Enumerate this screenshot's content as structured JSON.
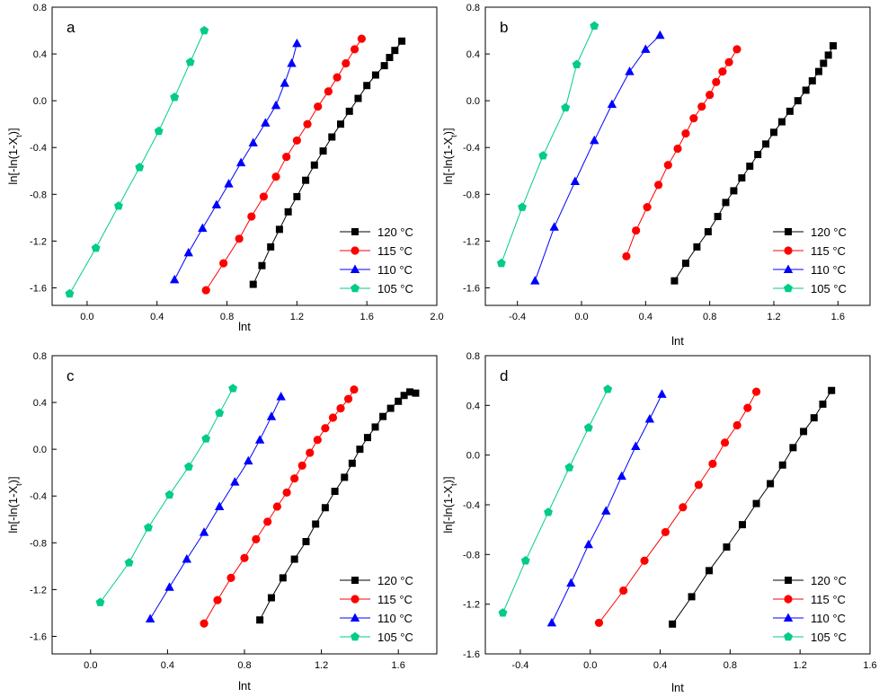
{
  "chart_data": [
    {
      "type": "line",
      "panel_label": "a",
      "xlabel": "lnt",
      "ylabel": "ln[-ln(1-X",
      "ylabel_sub": "t",
      "ylabel_end": ")]",
      "xlim": [
        -0.2,
        2.0
      ],
      "ylim": [
        -1.75,
        0.8
      ],
      "xticks": [
        0.0,
        0.4,
        0.8,
        1.2,
        1.6,
        2.0
      ],
      "xtick_labels": [
        "0.0",
        "0.4",
        "0.8",
        "1.2",
        "1.6",
        "2.0"
      ],
      "yticks": [
        -1.6,
        -1.2,
        -0.8,
        -0.4,
        0.0,
        0.4,
        0.8
      ],
      "ytick_labels": [
        "-1.6",
        "-1.2",
        "-0.8",
        "-0.4",
        "0.0",
        "0.4",
        "0.8"
      ],
      "legend_position": "lower-right",
      "series": [
        {
          "name": "120 °C",
          "color": "#000000",
          "marker": "square",
          "x": [
            0.95,
            1.0,
            1.05,
            1.1,
            1.15,
            1.2,
            1.25,
            1.3,
            1.35,
            1.4,
            1.45,
            1.5,
            1.55,
            1.6,
            1.65,
            1.7,
            1.73,
            1.76,
            1.8
          ],
          "y": [
            -1.57,
            -1.41,
            -1.25,
            -1.1,
            -0.95,
            -0.82,
            -0.68,
            -0.55,
            -0.43,
            -0.31,
            -0.2,
            -0.09,
            0.02,
            0.13,
            0.22,
            0.3,
            0.37,
            0.43,
            0.51
          ]
        },
        {
          "name": "115 °C",
          "color": "#ff0000",
          "marker": "circle",
          "x": [
            0.68,
            0.78,
            0.87,
            0.94,
            1.01,
            1.08,
            1.14,
            1.2,
            1.26,
            1.32,
            1.38,
            1.43,
            1.48,
            1.53,
            1.57
          ],
          "y": [
            -1.62,
            -1.39,
            -1.18,
            -0.99,
            -0.82,
            -0.65,
            -0.48,
            -0.34,
            -0.2,
            -0.05,
            0.08,
            0.2,
            0.32,
            0.44,
            0.53
          ]
        },
        {
          "name": "110 °C",
          "color": "#0000ff",
          "marker": "triangle",
          "x": [
            0.5,
            0.58,
            0.66,
            0.74,
            0.81,
            0.88,
            0.95,
            1.02,
            1.08,
            1.13,
            1.17,
            1.2
          ],
          "y": [
            -1.53,
            -1.3,
            -1.09,
            -0.89,
            -0.71,
            -0.53,
            -0.36,
            -0.19,
            -0.04,
            0.15,
            0.32,
            0.49
          ]
        },
        {
          "name": "105 °C",
          "color": "#00cc88",
          "marker": "pentagon",
          "x": [
            -0.1,
            0.05,
            0.18,
            0.3,
            0.41,
            0.5,
            0.59,
            0.67
          ],
          "y": [
            -1.65,
            -1.26,
            -0.9,
            -0.57,
            -0.26,
            0.03,
            0.33,
            0.6
          ]
        }
      ]
    },
    {
      "type": "line",
      "panel_label": "b",
      "xlabel": "lnt",
      "ylabel": "ln[-ln(1-X",
      "ylabel_sub": "t",
      "ylabel_end": ")]",
      "xlim": [
        -0.6,
        1.8
      ],
      "ylim": [
        -1.75,
        0.8
      ],
      "xticks": [
        -0.4,
        0.0,
        0.4,
        0.8,
        1.2,
        1.6
      ],
      "xtick_labels": [
        "-0.4",
        "0.0",
        "0.4",
        "0.8",
        "1.2",
        "1.6"
      ],
      "yticks": [
        -1.6,
        -1.2,
        -0.8,
        -0.4,
        0.0,
        0.4,
        0.8
      ],
      "ytick_labels": [
        "-1.6",
        "-1.2",
        "-0.8",
        "-0.4",
        "0.0",
        "0.4",
        "0.8"
      ],
      "legend_position": "lower-right",
      "series": [
        {
          "name": "120 °C",
          "color": "#000000",
          "marker": "square",
          "x": [
            0.58,
            0.65,
            0.72,
            0.79,
            0.85,
            0.9,
            0.95,
            1.0,
            1.05,
            1.1,
            1.15,
            1.2,
            1.25,
            1.3,
            1.35,
            1.4,
            1.44,
            1.48,
            1.51,
            1.54,
            1.57
          ],
          "y": [
            -1.54,
            -1.39,
            -1.25,
            -1.12,
            -0.99,
            -0.87,
            -0.77,
            -0.66,
            -0.56,
            -0.46,
            -0.37,
            -0.27,
            -0.18,
            -0.09,
            0.0,
            0.09,
            0.17,
            0.25,
            0.32,
            0.39,
            0.47
          ]
        },
        {
          "name": "115 °C",
          "color": "#ff0000",
          "marker": "circle",
          "x": [
            0.28,
            0.34,
            0.41,
            0.48,
            0.54,
            0.6,
            0.65,
            0.7,
            0.75,
            0.8,
            0.84,
            0.88,
            0.92,
            0.97
          ],
          "y": [
            -1.33,
            -1.11,
            -0.91,
            -0.72,
            -0.55,
            -0.41,
            -0.28,
            -0.15,
            -0.05,
            0.05,
            0.16,
            0.25,
            0.33,
            0.44
          ]
        },
        {
          "name": "110 °C",
          "color": "#0000ff",
          "marker": "triangle",
          "x": [
            -0.29,
            -0.17,
            -0.04,
            0.08,
            0.19,
            0.3,
            0.4,
            0.49
          ],
          "y": [
            -1.54,
            -1.08,
            -0.69,
            -0.34,
            -0.03,
            0.25,
            0.44,
            0.56
          ]
        },
        {
          "name": "105 °C",
          "color": "#00cc88",
          "marker": "pentagon",
          "x": [
            -0.5,
            -0.37,
            -0.24,
            -0.1,
            -0.03,
            0.08
          ],
          "y": [
            -1.39,
            -0.91,
            -0.47,
            -0.06,
            0.31,
            0.64
          ]
        }
      ]
    },
    {
      "type": "line",
      "panel_label": "c",
      "xlabel": "lnt",
      "ylabel": "ln[-ln(1-X",
      "ylabel_sub": "t",
      "ylabel_end": ")]",
      "xlim": [
        -0.2,
        1.8
      ],
      "ylim": [
        -1.75,
        0.8
      ],
      "xticks": [
        0.0,
        0.4,
        0.8,
        1.2,
        1.6
      ],
      "xtick_labels": [
        "0.0",
        "0.4",
        "0.8",
        "1.2",
        "1.6"
      ],
      "yticks": [
        -1.6,
        -1.2,
        -0.8,
        -0.4,
        0.0,
        0.4,
        0.8
      ],
      "ytick_labels": [
        "-1.6",
        "-1.2",
        "-0.8",
        "-0.4",
        "0.0",
        "0.4",
        "0.8"
      ],
      "legend_position": "lower-right",
      "series": [
        {
          "name": "120 °C",
          "color": "#000000",
          "marker": "square",
          "x": [
            0.88,
            0.94,
            1.0,
            1.06,
            1.12,
            1.17,
            1.22,
            1.27,
            1.32,
            1.36,
            1.4,
            1.44,
            1.48,
            1.52,
            1.56,
            1.6,
            1.63,
            1.66,
            1.69
          ],
          "y": [
            -1.46,
            -1.27,
            -1.1,
            -0.94,
            -0.79,
            -0.64,
            -0.5,
            -0.36,
            -0.24,
            -0.12,
            -0.0,
            0.1,
            0.19,
            0.28,
            0.35,
            0.41,
            0.46,
            0.49,
            0.48
          ]
        },
        {
          "name": "115 °C",
          "color": "#ff0000",
          "marker": "circle",
          "x": [
            0.59,
            0.66,
            0.73,
            0.8,
            0.86,
            0.92,
            0.97,
            1.02,
            1.06,
            1.1,
            1.14,
            1.18,
            1.22,
            1.26,
            1.3,
            1.34,
            1.37
          ],
          "y": [
            -1.49,
            -1.29,
            -1.1,
            -0.93,
            -0.77,
            -0.62,
            -0.49,
            -0.37,
            -0.25,
            -0.14,
            -0.03,
            0.08,
            0.18,
            0.27,
            0.35,
            0.43,
            0.51
          ]
        },
        {
          "name": "110 °C",
          "color": "#0000ff",
          "marker": "triangle",
          "x": [
            0.31,
            0.41,
            0.5,
            0.59,
            0.67,
            0.75,
            0.82,
            0.88,
            0.94,
            0.99
          ],
          "y": [
            -1.45,
            -1.18,
            -0.94,
            -0.71,
            -0.49,
            -0.28,
            -0.1,
            0.08,
            0.28,
            0.45
          ]
        },
        {
          "name": "105 °C",
          "color": "#00cc88",
          "marker": "pentagon",
          "x": [
            0.05,
            0.2,
            0.3,
            0.41,
            0.51,
            0.6,
            0.67,
            0.74
          ],
          "y": [
            -1.31,
            -0.97,
            -0.67,
            -0.39,
            -0.15,
            0.09,
            0.31,
            0.52
          ]
        }
      ]
    },
    {
      "type": "line",
      "panel_label": "d",
      "xlabel": "lnt",
      "ylabel": "ln[-ln(1-X",
      "ylabel_sub": "t",
      "ylabel_end": ")]",
      "xlim": [
        -0.6,
        1.6
      ],
      "ylim": [
        -1.6,
        0.8
      ],
      "xticks": [
        -0.4,
        0.0,
        0.4,
        0.8,
        1.2,
        1.6
      ],
      "xtick_labels": [
        "-0.4",
        "0.0",
        "0.4",
        "0.8",
        "1.2",
        "1.6"
      ],
      "yticks": [
        -1.6,
        -1.2,
        -0.8,
        -0.4,
        0.0,
        0.4,
        0.8
      ],
      "ytick_labels": [
        "-1.6",
        "-1.2",
        "-0.8",
        "-0.4",
        "0.0",
        "0.4",
        "0.8"
      ],
      "legend_position": "lower-right",
      "series": [
        {
          "name": "120 °C",
          "color": "#000000",
          "marker": "square",
          "x": [
            0.47,
            0.58,
            0.68,
            0.78,
            0.87,
            0.95,
            1.03,
            1.1,
            1.16,
            1.22,
            1.28,
            1.33,
            1.38
          ],
          "y": [
            -1.36,
            -1.14,
            -0.93,
            -0.74,
            -0.56,
            -0.39,
            -0.23,
            -0.08,
            0.06,
            0.19,
            0.3,
            0.41,
            0.52
          ]
        },
        {
          "name": "115 °C",
          "color": "#ff0000",
          "marker": "circle",
          "x": [
            0.05,
            0.19,
            0.31,
            0.43,
            0.53,
            0.62,
            0.7,
            0.77,
            0.84,
            0.9,
            0.95
          ],
          "y": [
            -1.35,
            -1.09,
            -0.85,
            -0.62,
            -0.42,
            -0.24,
            -0.07,
            0.1,
            0.24,
            0.38,
            0.51
          ]
        },
        {
          "name": "110 °C",
          "color": "#0000ff",
          "marker": "triangle",
          "x": [
            -0.22,
            -0.11,
            -0.01,
            0.09,
            0.18,
            0.26,
            0.34,
            0.41
          ],
          "y": [
            -1.35,
            -1.03,
            -0.72,
            -0.45,
            -0.17,
            0.07,
            0.29,
            0.49
          ]
        },
        {
          "name": "105 °C",
          "color": "#00cc88",
          "marker": "pentagon",
          "x": [
            -0.5,
            -0.37,
            -0.24,
            -0.12,
            -0.01,
            0.1
          ],
          "y": [
            -1.27,
            -0.85,
            -0.46,
            -0.1,
            0.22,
            0.53
          ]
        }
      ]
    }
  ]
}
